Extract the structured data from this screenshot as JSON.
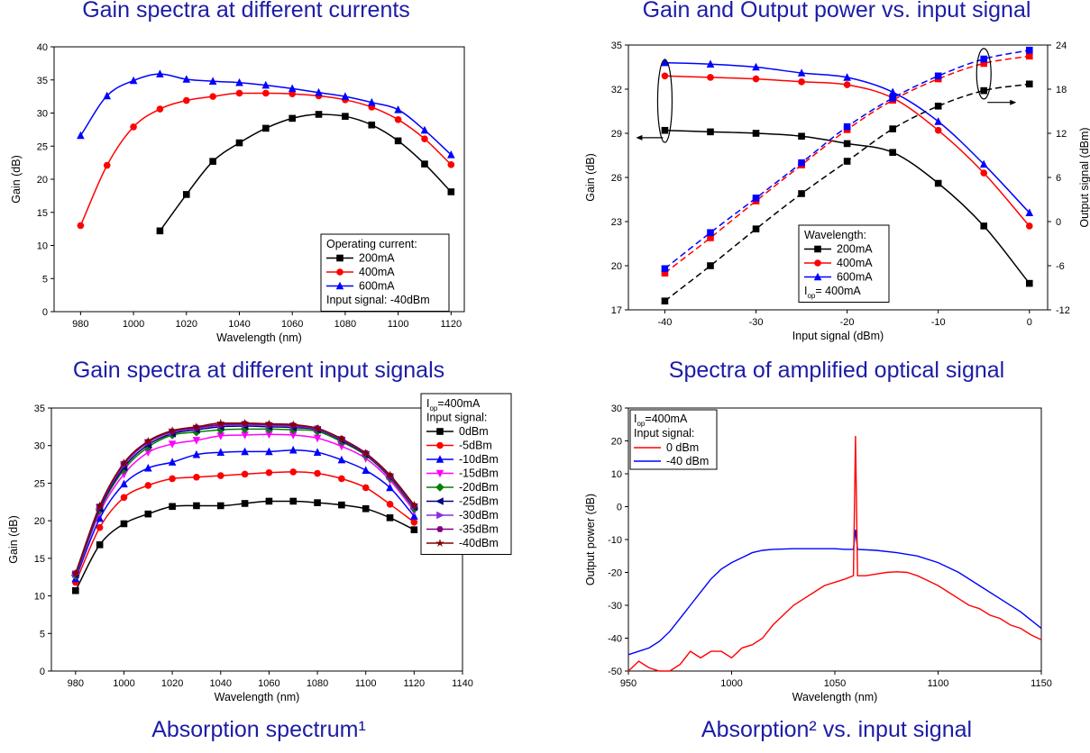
{
  "titles": {
    "top_left": "Gain spectra at different currents",
    "top_right": "Gain and Output power vs. input signal",
    "mid_left": "Gain spectra at different input signals",
    "mid_right": "Spectra of amplified optical signal",
    "bottom_left": "Absorption spectrum¹",
    "bottom_right": "Absorption² vs. input signal"
  },
  "chart_data": [
    {
      "type": "line",
      "xlabel": "Wavelength (nm)",
      "ylabel": "Gain (dB)",
      "xlim": [
        970,
        1125
      ],
      "ylim": [
        0,
        40
      ],
      "xticks": [
        980,
        1000,
        1020,
        1040,
        1060,
        1080,
        1100,
        1120
      ],
      "yticks": [
        0,
        5,
        10,
        15,
        20,
        25,
        30,
        35,
        40
      ],
      "legend": {
        "title": "Operating current:",
        "note": "Input signal: -40dBm",
        "placement": "bottom-right"
      },
      "series": [
        {
          "name": "200mA",
          "color": "#000000",
          "marker": "square",
          "x": [
            1010,
            1020,
            1030,
            1040,
            1050,
            1060,
            1070,
            1080,
            1090,
            1100,
            1110,
            1120
          ],
          "y": [
            12.2,
            17.7,
            22.7,
            25.5,
            27.7,
            29.2,
            29.8,
            29.5,
            28.2,
            25.8,
            22.3,
            18.1
          ]
        },
        {
          "name": "400mA",
          "color": "#ff0000",
          "marker": "circle",
          "x": [
            980,
            990,
            1000,
            1010,
            1020,
            1030,
            1040,
            1050,
            1060,
            1070,
            1080,
            1090,
            1100,
            1110,
            1120
          ],
          "y": [
            13.0,
            22.1,
            27.9,
            30.6,
            31.9,
            32.5,
            33.0,
            33.0,
            32.9,
            32.6,
            32.0,
            30.9,
            29.0,
            26.1,
            22.2
          ]
        },
        {
          "name": "600mA",
          "color": "#0000ff",
          "marker": "triangle",
          "x": [
            980,
            990,
            1000,
            1010,
            1020,
            1030,
            1040,
            1050,
            1060,
            1070,
            1080,
            1090,
            1100,
            1110,
            1120
          ],
          "y": [
            26.6,
            32.6,
            34.9,
            35.9,
            35.1,
            34.8,
            34.6,
            34.2,
            33.7,
            33.1,
            32.5,
            31.6,
            30.5,
            27.4,
            23.7
          ]
        }
      ]
    },
    {
      "type": "line",
      "xlabel": "Input signal (dBm)",
      "ylabel": "Gain (dB)",
      "y2label": "Output signal (dBm)",
      "xlim": [
        -44,
        2
      ],
      "ylim": [
        17,
        35
      ],
      "y2lim": [
        -12,
        24
      ],
      "xticks": [
        -40,
        -30,
        -20,
        -10,
        0
      ],
      "yticks": [
        17,
        20,
        23,
        26,
        29,
        32,
        35
      ],
      "y2ticks": [
        -12,
        -6,
        0,
        6,
        12,
        18,
        24
      ],
      "legend": {
        "title": "Wavelength:",
        "note_main": "I",
        "note_sub": "op",
        "note_rest": "= 400mA",
        "placement": "bottom-center"
      },
      "series": [
        {
          "name": "200mA",
          "color": "#000000",
          "marker": "square",
          "axis": "left",
          "x": [
            -40,
            -35,
            -30,
            -25,
            -20,
            -15,
            -10,
            -5,
            0
          ],
          "y": [
            29.2,
            29.1,
            29.0,
            28.8,
            28.3,
            27.7,
            25.6,
            22.7,
            18.8
          ]
        },
        {
          "name": "400mA",
          "color": "#ff0000",
          "marker": "circle",
          "axis": "left",
          "x": [
            -40,
            -35,
            -30,
            -25,
            -20,
            -15,
            -10,
            -5,
            0
          ],
          "y": [
            32.9,
            32.8,
            32.7,
            32.5,
            32.3,
            31.4,
            29.2,
            26.3,
            22.7
          ]
        },
        {
          "name": "600mA",
          "color": "#0000ff",
          "marker": "triangle",
          "axis": "left",
          "x": [
            -40,
            -35,
            -30,
            -25,
            -20,
            -15,
            -10,
            -5,
            0
          ],
          "y": [
            33.8,
            33.7,
            33.5,
            33.1,
            32.8,
            31.8,
            29.8,
            26.9,
            23.6
          ]
        },
        {
          "name": "200mA",
          "color": "#000000",
          "marker": "square",
          "axis": "right",
          "dashed": true,
          "x": [
            -40,
            -35,
            -30,
            -25,
            -20,
            -15,
            -10,
            -5,
            0
          ],
          "y": [
            -10.8,
            -6.0,
            -1.0,
            3.8,
            8.2,
            12.6,
            15.7,
            17.8,
            18.7
          ]
        },
        {
          "name": "400mA",
          "color": "#ff0000",
          "marker": "square",
          "axis": "right",
          "dashed": true,
          "x": [
            -40,
            -35,
            -30,
            -25,
            -20,
            -15,
            -10,
            -5,
            0
          ],
          "y": [
            -7.0,
            -2.2,
            2.8,
            7.7,
            12.5,
            16.5,
            19.4,
            21.5,
            22.5
          ]
        },
        {
          "name": "600mA",
          "color": "#0000ff",
          "marker": "square",
          "axis": "right",
          "dashed": true,
          "x": [
            -40,
            -35,
            -30,
            -25,
            -20,
            -15,
            -10,
            -5,
            0
          ],
          "y": [
            -6.4,
            -1.5,
            3.2,
            8.0,
            12.9,
            16.8,
            19.8,
            22.1,
            23.3
          ]
        }
      ]
    },
    {
      "type": "line",
      "xlabel": "Wavelength (nm)",
      "ylabel": "Gain (dB)",
      "xlim": [
        970,
        1140
      ],
      "ylim": [
        0,
        35
      ],
      "xticks": [
        980,
        1000,
        1020,
        1040,
        1060,
        1080,
        1100,
        1120,
        1140
      ],
      "yticks": [
        0,
        5,
        10,
        15,
        20,
        25,
        30,
        35
      ],
      "legend": {
        "note_main": "I",
        "note_sub": "op",
        "note_rest": "=400mA",
        "title": "Input signal:",
        "placement": "top-right"
      },
      "x": [
        980,
        990,
        1000,
        1010,
        1020,
        1030,
        1040,
        1050,
        1060,
        1070,
        1080,
        1090,
        1100,
        1110,
        1120
      ],
      "series": [
        {
          "name": "0dBm",
          "color": "#000000",
          "marker": "square",
          "values": [
            10.7,
            16.8,
            19.6,
            20.9,
            21.9,
            22.0,
            22.0,
            22.3,
            22.6,
            22.6,
            22.4,
            22.1,
            21.6,
            20.4,
            18.8
          ]
        },
        {
          "name": "-5dBm",
          "color": "#ff0000",
          "marker": "circle",
          "values": [
            11.8,
            19.1,
            23.1,
            24.7,
            25.6,
            25.8,
            26.0,
            26.2,
            26.4,
            26.5,
            26.3,
            25.6,
            24.4,
            22.2,
            19.8
          ]
        },
        {
          "name": "-10dBm",
          "color": "#0000ff",
          "marker": "triangle",
          "values": [
            12.3,
            20.3,
            24.9,
            27.0,
            27.8,
            28.8,
            29.1,
            29.2,
            29.2,
            29.4,
            29.1,
            28.1,
            26.7,
            24.4,
            20.6
          ]
        },
        {
          "name": "-15dBm",
          "color": "#ff00ff",
          "marker": "triangle-down",
          "values": [
            12.6,
            21.1,
            26.2,
            29.1,
            30.2,
            30.7,
            31.3,
            31.4,
            31.5,
            31.4,
            31.0,
            29.9,
            28.3,
            25.4,
            21.3
          ]
        },
        {
          "name": "-20dBm",
          "color": "#008000",
          "marker": "diamond",
          "values": [
            12.7,
            21.4,
            26.8,
            29.8,
            31.4,
            31.8,
            32.1,
            32.2,
            32.2,
            32.1,
            31.9,
            30.5,
            28.7,
            25.7,
            21.6
          ]
        },
        {
          "name": "-25dBm",
          "color": "#000080",
          "marker": "triangle-left",
          "values": [
            12.8,
            21.6,
            27.1,
            30.1,
            31.6,
            32.1,
            32.5,
            32.6,
            32.5,
            32.4,
            32.1,
            30.7,
            28.8,
            25.8,
            21.8
          ]
        },
        {
          "name": "-30dBm",
          "color": "#8a2be2",
          "marker": "triangle-right",
          "values": [
            12.9,
            21.8,
            27.4,
            30.4,
            31.8,
            32.3,
            32.7,
            32.8,
            32.7,
            32.6,
            32.2,
            30.8,
            28.9,
            25.9,
            21.9
          ]
        },
        {
          "name": "-35dBm",
          "color": "#800080",
          "marker": "hexagon",
          "values": [
            13.0,
            21.9,
            27.6,
            30.5,
            31.9,
            32.4,
            32.8,
            32.9,
            32.8,
            32.7,
            32.3,
            30.9,
            29.0,
            26.0,
            22.0
          ]
        },
        {
          "name": "-40dBm",
          "color": "#800000",
          "marker": "star",
          "values": [
            13.0,
            22.0,
            27.7,
            30.6,
            32.0,
            32.5,
            33.0,
            33.0,
            32.9,
            32.8,
            32.3,
            30.9,
            29.0,
            26.1,
            22.1
          ]
        }
      ]
    },
    {
      "type": "line",
      "xlabel": "Wavelength (nm)",
      "ylabel": "Output power (dB)",
      "xlim": [
        950,
        1150
      ],
      "ylim": [
        -50,
        30
      ],
      "xticks": [
        950,
        1000,
        1050,
        1100,
        1150
      ],
      "yticks": [
        -50,
        -40,
        -30,
        -20,
        -10,
        0,
        10,
        20,
        30
      ],
      "legend": {
        "note_main": "I",
        "note_sub": "op",
        "note_rest": "=400mA",
        "title": "Input signal:",
        "placement": "top-left"
      },
      "series": [
        {
          "name": "0 dBm",
          "color": "#ff0000",
          "x": [
            950,
            955,
            960,
            965,
            970,
            975,
            980,
            985,
            990,
            995,
            1000,
            1005,
            1010,
            1015,
            1020,
            1025,
            1030,
            1035,
            1040,
            1045,
            1050,
            1055,
            1059,
            1060,
            1061,
            1065,
            1070,
            1075,
            1080,
            1085,
            1090,
            1095,
            1100,
            1105,
            1110,
            1115,
            1120,
            1125,
            1130,
            1135,
            1140,
            1145,
            1150
          ],
          "y": [
            -50,
            -47,
            -49,
            -50,
            -50,
            -48,
            -44,
            -46,
            -44,
            -44,
            -46,
            -43,
            -42,
            -40,
            -36,
            -33,
            -30,
            -28,
            -26,
            -24,
            -23,
            -22,
            -21,
            21.5,
            -21,
            -21,
            -20.5,
            -20,
            -19.8,
            -20,
            -21,
            -22.5,
            -24,
            -26,
            -28,
            -30,
            -31,
            -33,
            -34,
            -36,
            -37,
            -39,
            -40.5
          ]
        },
        {
          "name": "-40 dBm",
          "color": "#0000ff",
          "x": [
            950,
            955,
            960,
            965,
            970,
            975,
            980,
            985,
            990,
            995,
            1000,
            1005,
            1010,
            1015,
            1020,
            1030,
            1040,
            1050,
            1055,
            1059,
            1060,
            1061,
            1070,
            1080,
            1090,
            1100,
            1110,
            1120,
            1130,
            1140,
            1150
          ],
          "y": [
            -45,
            -44,
            -43,
            -41,
            -38,
            -34,
            -30,
            -26,
            -22,
            -19,
            -17,
            -15.5,
            -14,
            -13.3,
            -13,
            -12.8,
            -12.8,
            -12.8,
            -13,
            -13,
            -7,
            -13,
            -13.3,
            -14,
            -15,
            -17,
            -20,
            -24,
            -28,
            -32,
            -37
          ]
        }
      ]
    }
  ]
}
